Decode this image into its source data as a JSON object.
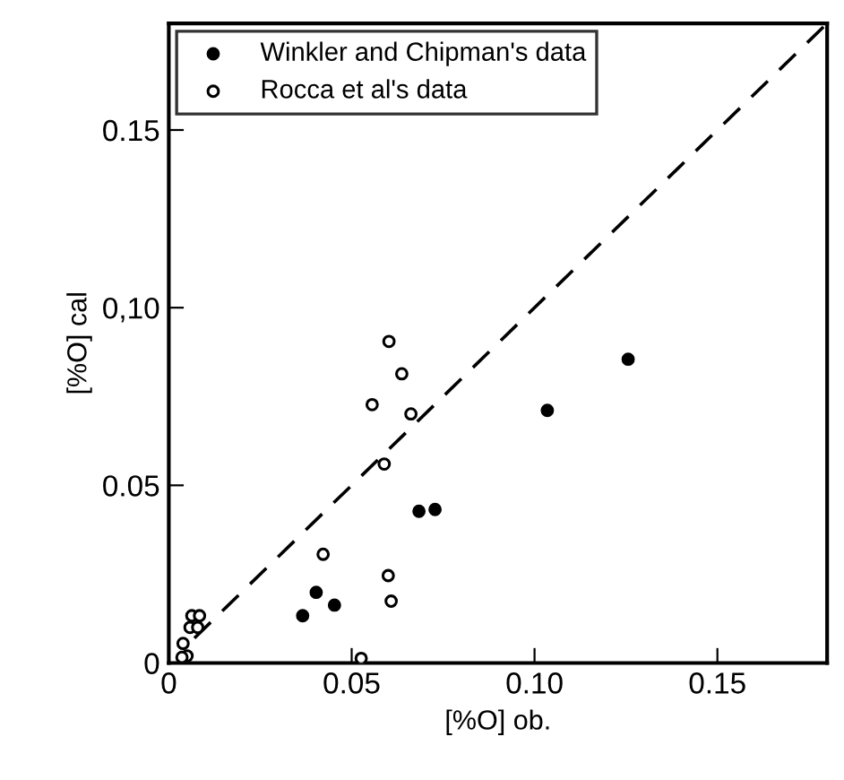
{
  "chart_data": {
    "type": "scatter",
    "xlabel": "[%O] ob.",
    "ylabel": "[%O] cal",
    "xlim": [
      0,
      0.18
    ],
    "ylim": [
      0,
      0.18
    ],
    "xticks": [
      0,
      0.05,
      {
        "value": 0.1,
        "label": "0.10"
      },
      0.15
    ],
    "yticks": [
      0,
      0.05,
      {
        "value": 0.1,
        "label": "0,10"
      },
      0.15
    ],
    "grid": false,
    "legend": "top left",
    "series": [
      {
        "name": "Winkler and Chipman's data",
        "color": "#000000",
        "marker": "circle",
        "x": [
          0.0366,
          0.0403,
          0.0453,
          0.0684,
          0.0728,
          0.1035,
          0.1256
        ],
        "values": [
          0.0133,
          0.0199,
          0.0163,
          0.0427,
          0.0432,
          0.0711,
          0.0855
        ]
      },
      {
        "name": "Rocca et al's data",
        "color": "#ffffff",
        "marker": "circle",
        "x": [
          0.0602,
          0.0637,
          0.0556,
          0.0662,
          0.0589,
          0.0422,
          0.06,
          0.0608,
          0.0526,
          0.0063,
          0.0084,
          0.0058,
          0.0079,
          0.0039,
          0.005,
          0.0036
        ],
        "values": [
          0.0905,
          0.0814,
          0.0727,
          0.0701,
          0.056,
          0.0306,
          0.0246,
          0.0174,
          0.0013,
          0.0133,
          0.0133,
          0.01,
          0.01,
          0.0055,
          0.002,
          0.0016
        ]
      },
      {
        "type": "line",
        "color": "#000000",
        "line_style": "dashed",
        "marker": "none",
        "x": [
          0.007,
          0.18
        ],
        "values": [
          0.007,
          0.18
        ]
      }
    ]
  }
}
